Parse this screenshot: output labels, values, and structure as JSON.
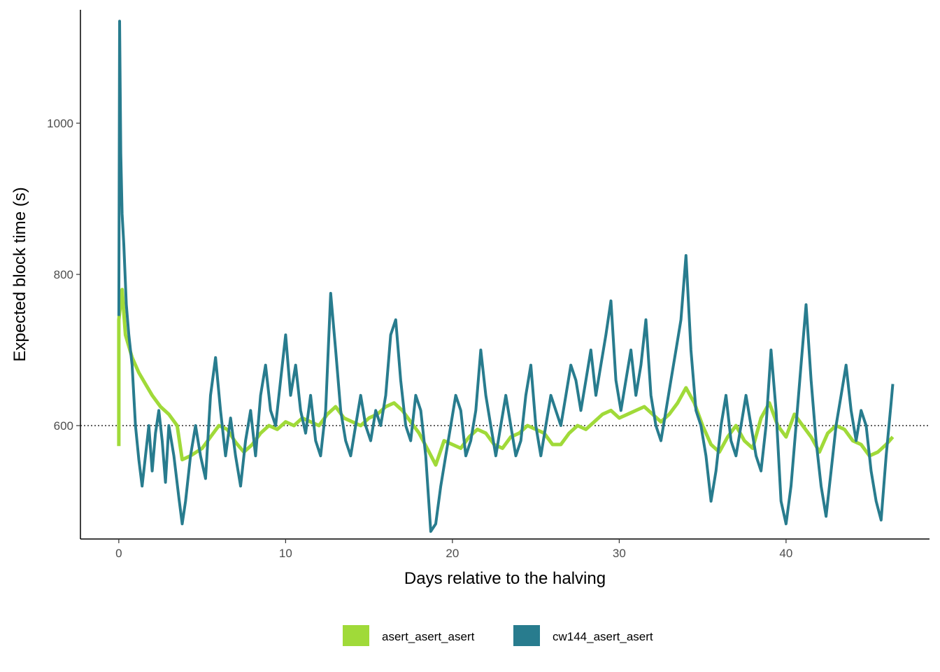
{
  "chart_data": {
    "type": "line",
    "xlabel": "Days relative to the halving",
    "ylabel": "Expected block time (s)",
    "xlim": [
      -2.3,
      48.6
    ],
    "ylim": [
      450,
      1150
    ],
    "x_ticks": [
      0,
      10,
      20,
      30,
      40
    ],
    "y_ticks": [
      600,
      800,
      1000
    ],
    "reference_line": {
      "y": 600,
      "style": "dotted",
      "color": "#000000"
    },
    "grid": false,
    "legend_position": "bottom",
    "series": [
      {
        "name": "asert_asert_asert",
        "color": "#a0da39",
        "points": [
          [
            0,
            573
          ],
          [
            0,
            740
          ],
          [
            0.2,
            780
          ],
          [
            0.4,
            720
          ],
          [
            0.8,
            690
          ],
          [
            1.2,
            670
          ],
          [
            1.6,
            655
          ],
          [
            2,
            640
          ],
          [
            2.5,
            625
          ],
          [
            3,
            615
          ],
          [
            3.5,
            600
          ],
          [
            3.8,
            555
          ],
          [
            4.3,
            560
          ],
          [
            5,
            570
          ],
          [
            5.5,
            585
          ],
          [
            6,
            600
          ],
          [
            6.5,
            595
          ],
          [
            7,
            578
          ],
          [
            7.5,
            565
          ],
          [
            8,
            575
          ],
          [
            8.5,
            590
          ],
          [
            9,
            600
          ],
          [
            9.5,
            595
          ],
          [
            10,
            605
          ],
          [
            10.5,
            600
          ],
          [
            11,
            610
          ],
          [
            11.5,
            605
          ],
          [
            12,
            600
          ],
          [
            12.5,
            615
          ],
          [
            13,
            625
          ],
          [
            13.5,
            610
          ],
          [
            14,
            605
          ],
          [
            14.5,
            600
          ],
          [
            15,
            610
          ],
          [
            15.5,
            615
          ],
          [
            16,
            625
          ],
          [
            16.5,
            630
          ],
          [
            17,
            620
          ],
          [
            17.5,
            605
          ],
          [
            18,
            590
          ],
          [
            18.6,
            565
          ],
          [
            19,
            548
          ],
          [
            19.5,
            580
          ],
          [
            20,
            575
          ],
          [
            20.5,
            570
          ],
          [
            21,
            585
          ],
          [
            21.5,
            595
          ],
          [
            22,
            590
          ],
          [
            22.5,
            575
          ],
          [
            23,
            570
          ],
          [
            23.5,
            585
          ],
          [
            24,
            590
          ],
          [
            24.5,
            600
          ],
          [
            25,
            595
          ],
          [
            25.5,
            590
          ],
          [
            26,
            575
          ],
          [
            26.5,
            575
          ],
          [
            27,
            590
          ],
          [
            27.5,
            600
          ],
          [
            28,
            595
          ],
          [
            28.5,
            605
          ],
          [
            29,
            615
          ],
          [
            29.5,
            620
          ],
          [
            30,
            610
          ],
          [
            30.5,
            615
          ],
          [
            31,
            620
          ],
          [
            31.5,
            625
          ],
          [
            32,
            615
          ],
          [
            32.5,
            605
          ],
          [
            33,
            615
          ],
          [
            33.5,
            630
          ],
          [
            34,
            650
          ],
          [
            34.5,
            630
          ],
          [
            35,
            600
          ],
          [
            35.5,
            575
          ],
          [
            36,
            565
          ],
          [
            36.5,
            585
          ],
          [
            37,
            600
          ],
          [
            37.5,
            580
          ],
          [
            38,
            570
          ],
          [
            38.5,
            610
          ],
          [
            39,
            630
          ],
          [
            39.5,
            600
          ],
          [
            40,
            585
          ],
          [
            40.5,
            615
          ],
          [
            41,
            600
          ],
          [
            41.5,
            585
          ],
          [
            42,
            565
          ],
          [
            42.5,
            590
          ],
          [
            43,
            600
          ],
          [
            43.5,
            595
          ],
          [
            44,
            580
          ],
          [
            44.5,
            575
          ],
          [
            45,
            560
          ],
          [
            45.5,
            565
          ],
          [
            46,
            575
          ],
          [
            46.4,
            585
          ]
        ]
      },
      {
        "name": "cw144_asert_asert",
        "color": "#287c8e",
        "points": [
          [
            0,
            745
          ],
          [
            0.05,
            1135
          ],
          [
            0.12,
            960
          ],
          [
            0.2,
            880
          ],
          [
            0.3,
            840
          ],
          [
            0.45,
            760
          ],
          [
            0.6,
            720
          ],
          [
            0.8,
            680
          ],
          [
            1.0,
            600
          ],
          [
            1.2,
            555
          ],
          [
            1.4,
            520
          ],
          [
            1.6,
            560
          ],
          [
            1.8,
            600
          ],
          [
            2.0,
            540
          ],
          [
            2.2,
            590
          ],
          [
            2.4,
            620
          ],
          [
            2.6,
            580
          ],
          [
            2.8,
            525
          ],
          [
            3.0,
            600
          ],
          [
            3.3,
            560
          ],
          [
            3.6,
            505
          ],
          [
            3.8,
            470
          ],
          [
            4.0,
            500
          ],
          [
            4.3,
            560
          ],
          [
            4.6,
            600
          ],
          [
            4.9,
            560
          ],
          [
            5.2,
            530
          ],
          [
            5.5,
            640
          ],
          [
            5.8,
            690
          ],
          [
            6.1,
            620
          ],
          [
            6.4,
            560
          ],
          [
            6.7,
            610
          ],
          [
            7.0,
            560
          ],
          [
            7.3,
            520
          ],
          [
            7.6,
            580
          ],
          [
            7.9,
            620
          ],
          [
            8.2,
            560
          ],
          [
            8.5,
            640
          ],
          [
            8.8,
            680
          ],
          [
            9.1,
            620
          ],
          [
            9.4,
            600
          ],
          [
            9.7,
            660
          ],
          [
            10.0,
            720
          ],
          [
            10.3,
            640
          ],
          [
            10.6,
            680
          ],
          [
            10.9,
            620
          ],
          [
            11.2,
            590
          ],
          [
            11.5,
            640
          ],
          [
            11.8,
            580
          ],
          [
            12.1,
            560
          ],
          [
            12.4,
            620
          ],
          [
            12.7,
            775
          ],
          [
            13.0,
            700
          ],
          [
            13.3,
            620
          ],
          [
            13.6,
            580
          ],
          [
            13.9,
            560
          ],
          [
            14.2,
            600
          ],
          [
            14.5,
            640
          ],
          [
            14.8,
            600
          ],
          [
            15.1,
            580
          ],
          [
            15.4,
            620
          ],
          [
            15.7,
            600
          ],
          [
            16.0,
            640
          ],
          [
            16.3,
            720
          ],
          [
            16.6,
            740
          ],
          [
            16.9,
            660
          ],
          [
            17.2,
            600
          ],
          [
            17.5,
            580
          ],
          [
            17.8,
            640
          ],
          [
            18.1,
            620
          ],
          [
            18.4,
            560
          ],
          [
            18.7,
            460
          ],
          [
            19.0,
            470
          ],
          [
            19.3,
            520
          ],
          [
            19.6,
            560
          ],
          [
            19.9,
            600
          ],
          [
            20.2,
            640
          ],
          [
            20.5,
            620
          ],
          [
            20.8,
            560
          ],
          [
            21.1,
            580
          ],
          [
            21.4,
            620
          ],
          [
            21.7,
            700
          ],
          [
            22.0,
            640
          ],
          [
            22.3,
            600
          ],
          [
            22.6,
            560
          ],
          [
            22.9,
            600
          ],
          [
            23.2,
            640
          ],
          [
            23.5,
            600
          ],
          [
            23.8,
            560
          ],
          [
            24.1,
            580
          ],
          [
            24.4,
            640
          ],
          [
            24.7,
            680
          ],
          [
            25.0,
            600
          ],
          [
            25.3,
            560
          ],
          [
            25.6,
            600
          ],
          [
            25.9,
            640
          ],
          [
            26.2,
            620
          ],
          [
            26.5,
            600
          ],
          [
            26.8,
            640
          ],
          [
            27.1,
            680
          ],
          [
            27.4,
            660
          ],
          [
            27.7,
            620
          ],
          [
            28.0,
            660
          ],
          [
            28.3,
            700
          ],
          [
            28.6,
            640
          ],
          [
            28.9,
            680
          ],
          [
            29.2,
            720
          ],
          [
            29.5,
            765
          ],
          [
            29.8,
            660
          ],
          [
            30.1,
            620
          ],
          [
            30.4,
            660
          ],
          [
            30.7,
            700
          ],
          [
            31.0,
            640
          ],
          [
            31.3,
            680
          ],
          [
            31.6,
            740
          ],
          [
            31.9,
            640
          ],
          [
            32.2,
            600
          ],
          [
            32.5,
            580
          ],
          [
            32.8,
            620
          ],
          [
            33.1,
            660
          ],
          [
            33.4,
            700
          ],
          [
            33.7,
            740
          ],
          [
            34.0,
            825
          ],
          [
            34.3,
            700
          ],
          [
            34.6,
            620
          ],
          [
            34.9,
            600
          ],
          [
            35.2,
            560
          ],
          [
            35.5,
            500
          ],
          [
            35.8,
            540
          ],
          [
            36.1,
            600
          ],
          [
            36.4,
            640
          ],
          [
            36.7,
            580
          ],
          [
            37.0,
            560
          ],
          [
            37.3,
            600
          ],
          [
            37.6,
            640
          ],
          [
            37.9,
            600
          ],
          [
            38.2,
            560
          ],
          [
            38.5,
            540
          ],
          [
            38.8,
            600
          ],
          [
            39.1,
            700
          ],
          [
            39.4,
            620
          ],
          [
            39.7,
            500
          ],
          [
            40.0,
            470
          ],
          [
            40.3,
            520
          ],
          [
            40.6,
            600
          ],
          [
            40.9,
            680
          ],
          [
            41.2,
            760
          ],
          [
            41.5,
            660
          ],
          [
            41.8,
            580
          ],
          [
            42.1,
            520
          ],
          [
            42.4,
            480
          ],
          [
            42.7,
            540
          ],
          [
            43.0,
            600
          ],
          [
            43.3,
            640
          ],
          [
            43.6,
            680
          ],
          [
            43.9,
            620
          ],
          [
            44.2,
            580
          ],
          [
            44.5,
            620
          ],
          [
            44.8,
            600
          ],
          [
            45.1,
            540
          ],
          [
            45.4,
            500
          ],
          [
            45.7,
            475
          ],
          [
            46.0,
            560
          ],
          [
            46.3,
            630
          ],
          [
            46.4,
            655
          ]
        ]
      }
    ]
  }
}
